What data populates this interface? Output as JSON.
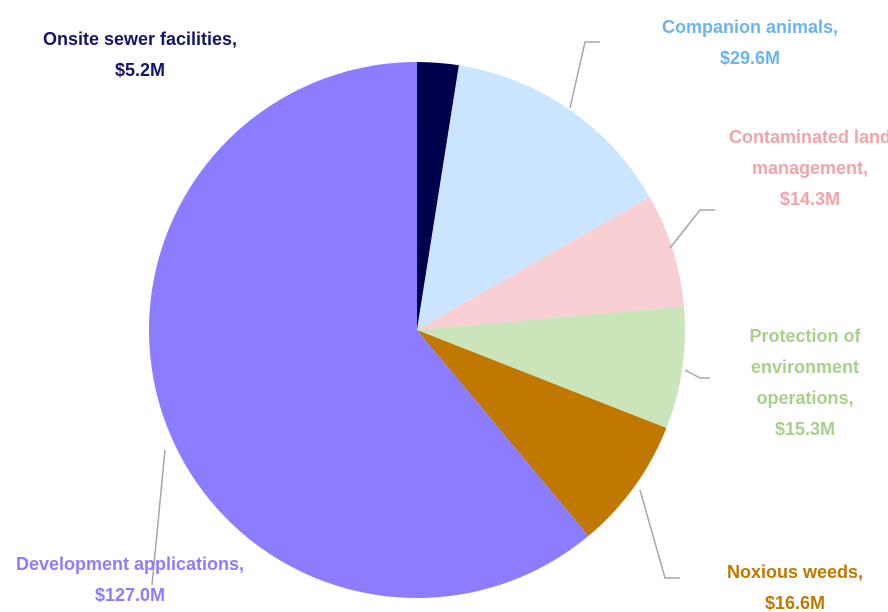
{
  "chart_data": {
    "type": "pie",
    "categories": [
      "Onsite sewer facilities,",
      "Companion animals,",
      "Contaminated land management,",
      "Protection of environment operations,",
      "Noxious weeds,",
      "Development applications,"
    ],
    "values": [
      5.2,
      29.6,
      14.3,
      15.3,
      16.6,
      127.0
    ],
    "value_labels": [
      "$5.2M",
      "$29.6M",
      "$14.3M",
      "$15.3M",
      "$16.6M",
      "$127.0M"
    ],
    "colors": [
      "#00004d",
      "#cce5ff",
      "#f8d0d4",
      "#c9e5b9",
      "#c07800",
      "#8c7cff"
    ],
    "label_colors": [
      "#14146e",
      "#6cb4ee",
      "#f4a3a8",
      "#a8d08d",
      "#bf7800",
      "#8c7cff"
    ]
  }
}
